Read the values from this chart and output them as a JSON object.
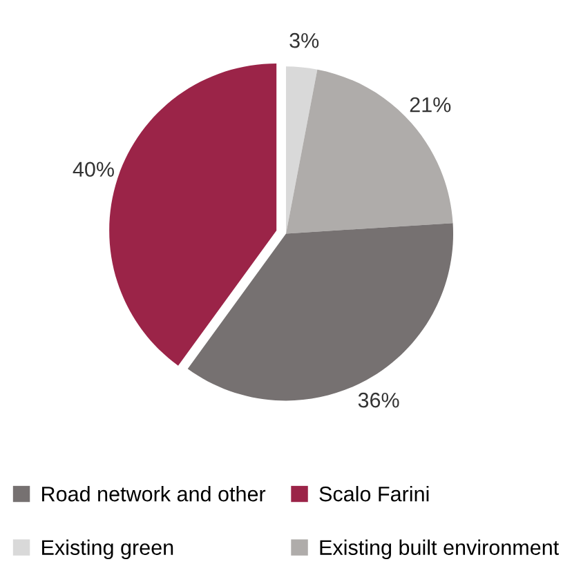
{
  "chart_data": {
    "type": "pie",
    "categories": [
      "Existing green",
      "Existing built environment",
      "Road network and other",
      "Scalo Farini"
    ],
    "values": [
      3,
      21,
      36,
      40
    ],
    "colors": [
      "#d9d9d9",
      "#afacaa",
      "#767171",
      "#9b2448"
    ],
    "value_labels": [
      "3%",
      "21%",
      "36%",
      "40%"
    ],
    "legend": "bottom"
  }
}
